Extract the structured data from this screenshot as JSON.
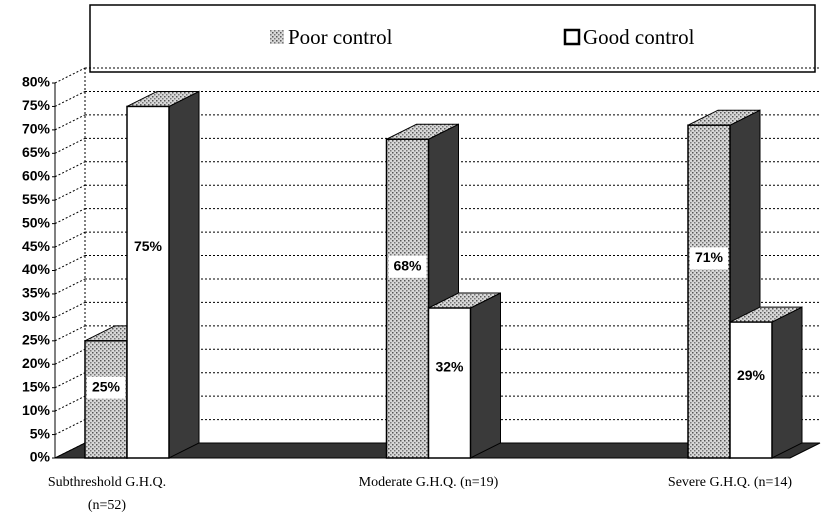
{
  "chart_data": {
    "type": "bar3d",
    "categories": [
      "Subthreshold G.H.Q.\n(n=52)",
      "Moderate G.H.Q. (n=19)",
      "Severe G.H.Q. (n=14)"
    ],
    "series": [
      {
        "name": "Poor control",
        "color": "#c4c4c4",
        "values": [
          25,
          68,
          71
        ],
        "value_labels": [
          "25%",
          "68%",
          "71%"
        ]
      },
      {
        "name": "Good control",
        "color": "#ffffff",
        "values": [
          75,
          32,
          29
        ],
        "value_labels": [
          "75%",
          "32%",
          "29%"
        ]
      }
    ],
    "ylim": [
      0,
      80
    ],
    "yticks": [
      {
        "value": 0,
        "label": "0%"
      },
      {
        "value": 5,
        "label": "5%"
      },
      {
        "value": 10,
        "label": "10%"
      },
      {
        "value": 15,
        "label": "15%"
      },
      {
        "value": 20,
        "label": "20%"
      },
      {
        "value": 25,
        "label": "25%"
      },
      {
        "value": 30,
        "label": "30%"
      },
      {
        "value": 35,
        "label": "35%"
      },
      {
        "value": 40,
        "label": "40%"
      },
      {
        "value": 45,
        "label": "45%"
      },
      {
        "value": 50,
        "label": "50%"
      },
      {
        "value": 55,
        "label": "55%"
      },
      {
        "value": 60,
        "label": "60%"
      },
      {
        "value": 65,
        "label": "65%"
      },
      {
        "value": 70,
        "label": "70%"
      },
      {
        "value": 75,
        "label": "75%"
      },
      {
        "value": 80,
        "label": "80%"
      }
    ],
    "grid": true
  }
}
